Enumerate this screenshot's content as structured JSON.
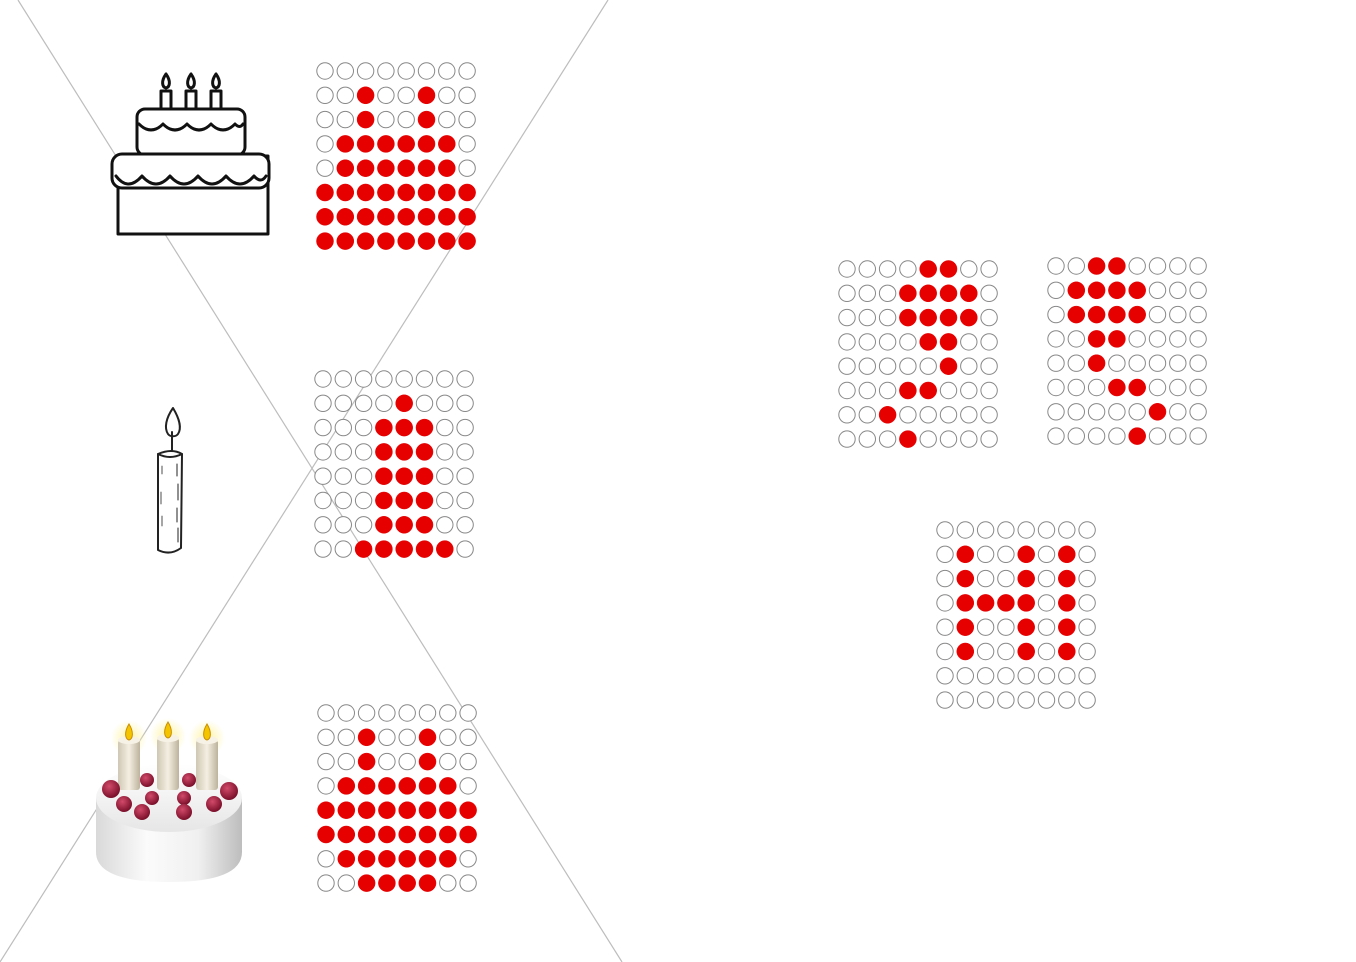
{
  "colors": {
    "dot_on": "#e60000",
    "dot_off_stroke": "#888888",
    "dot_off_fill": "#ffffff",
    "guide_line": "#bdbdbd",
    "icon_stroke": "#111111"
  },
  "icons": [
    {
      "id": "cake-outline",
      "name": "birthday-cake-outline-icon"
    },
    {
      "id": "candle",
      "name": "candle-icon"
    },
    {
      "id": "cake-emoji",
      "name": "birthday-cake-emoji-icon"
    }
  ],
  "dot_grids": [
    {
      "id": "cake-outline-pattern",
      "rows": [
        "00000000",
        "00100100",
        "00100100",
        "01111110",
        "01111110",
        "11111111",
        "11111111",
        "11111111"
      ]
    },
    {
      "id": "candle-pattern",
      "rows": [
        "00000000",
        "00001000",
        "00011100",
        "00011100",
        "00011100",
        "00011100",
        "00011100",
        "00111110"
      ]
    },
    {
      "id": "cake-emoji-pattern",
      "rows": [
        "00000000",
        "00100100",
        "00100100",
        "01111110",
        "11111111",
        "11111111",
        "01111110",
        "00111100"
      ]
    },
    {
      "id": "right-pattern-a",
      "rows": [
        "00001100",
        "00011110",
        "00011110",
        "00001100",
        "00000100",
        "00011000",
        "00100000",
        "00010000"
      ]
    },
    {
      "id": "right-pattern-b",
      "rows": [
        "00110000",
        "01111000",
        "01111000",
        "00110000",
        "00100000",
        "00011000",
        "00000100",
        "00001000"
      ]
    },
    {
      "id": "right-pattern-c",
      "rows": [
        "00000000",
        "01001010",
        "01001010",
        "01111010",
        "01001010",
        "01001010",
        "00000000",
        "00000000"
      ]
    }
  ]
}
